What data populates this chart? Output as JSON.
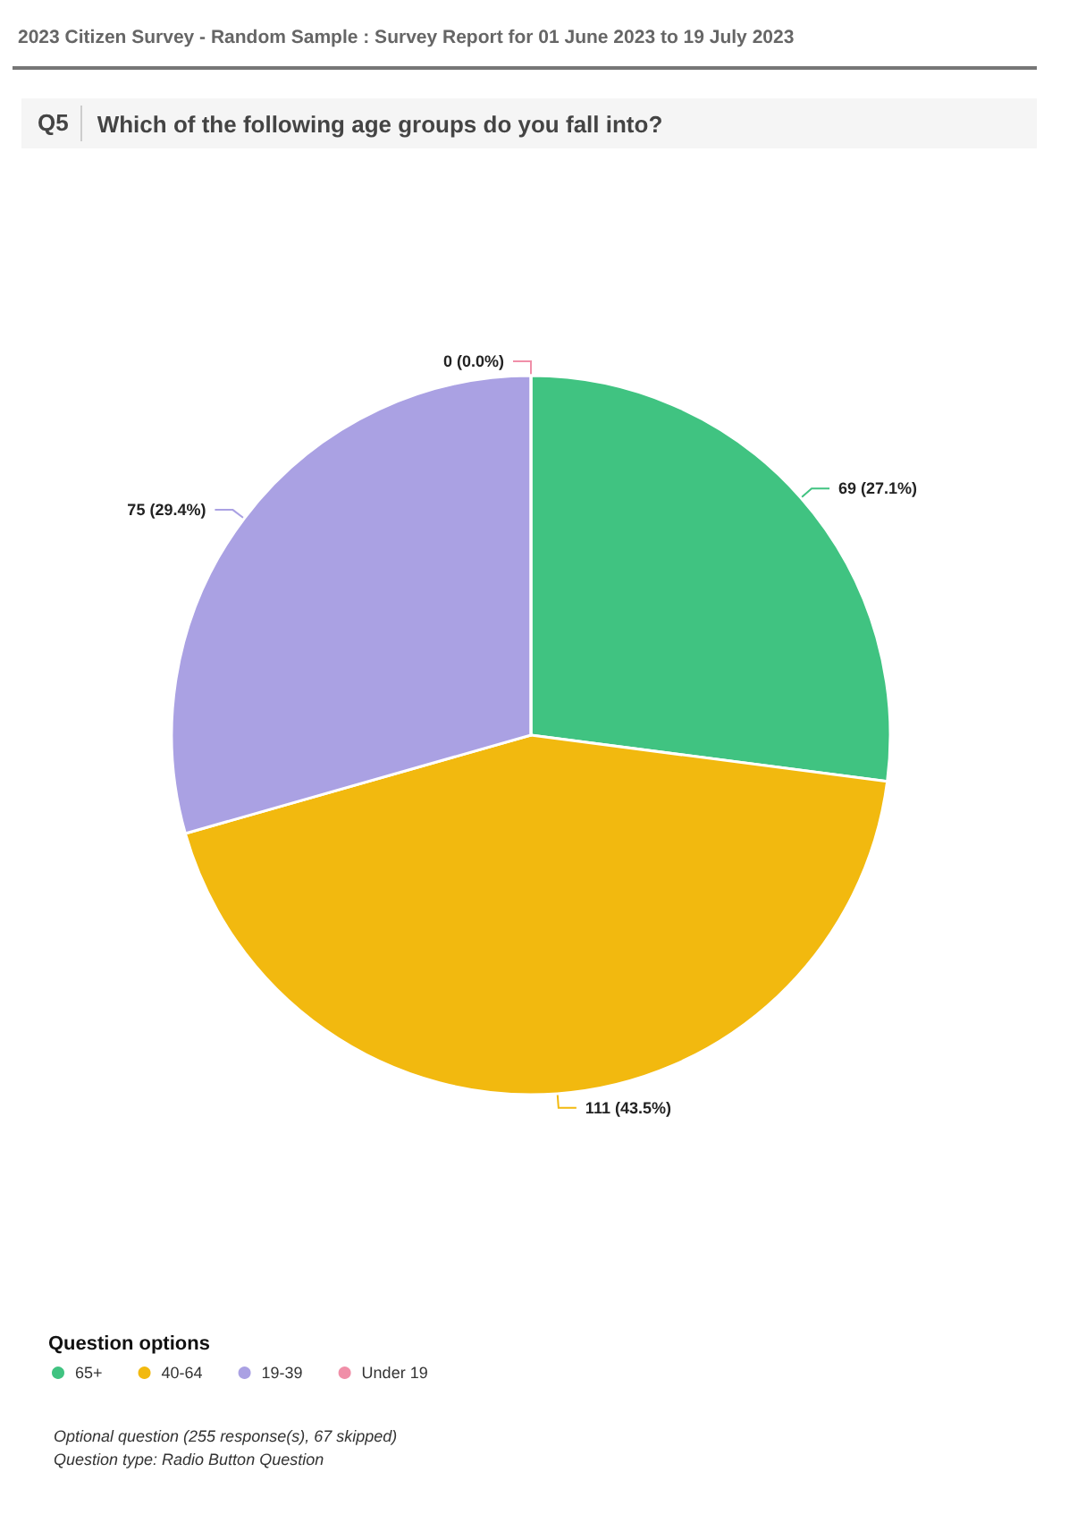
{
  "chart_data": {
    "type": "pie",
    "title": "2023 Citizen Survey - Random Sample : Survey Report for 01 June 2023 to 19 July 2023",
    "subtitle": "Which of the following age groups do you fall into?",
    "legend_title": "Question options",
    "categories": [
      "65+",
      "40-64",
      "19-39",
      "Under 19"
    ],
    "values": [
      69,
      111,
      75,
      0
    ],
    "value_labels": [
      "69 (27.1%)",
      "111 (43.5%)",
      "75 (29.4%)",
      "0 (0.0%)"
    ],
    "colors": [
      "#40c381",
      "#f2b90f",
      "#aaa1e3",
      "#f08fa8"
    ],
    "legend": "bottom left",
    "annotations": [
      "Q5",
      "Optional question (255 response(s), 67 skipped)",
      "Question type: Radio Button Question"
    ]
  }
}
